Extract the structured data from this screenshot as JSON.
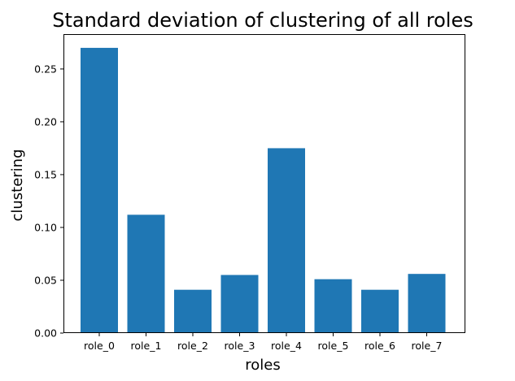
{
  "chart_data": {
    "type": "bar",
    "title": "Standard deviation of clustering of all roles",
    "xlabel": "roles",
    "ylabel": "clustering",
    "categories": [
      "role_0",
      "role_1",
      "role_2",
      "role_3",
      "role_4",
      "role_5",
      "role_6",
      "role_7"
    ],
    "values": [
      0.27,
      0.112,
      0.041,
      0.055,
      0.175,
      0.051,
      0.041,
      0.056
    ],
    "ylim": [
      0,
      0.283
    ],
    "yticks": [
      0.0,
      0.05,
      0.1,
      0.15,
      0.2,
      0.25
    ],
    "ytick_labels": [
      "0.00",
      "0.05",
      "0.10",
      "0.15",
      "0.20",
      "0.25"
    ],
    "bar_color": "#1f77b4",
    "grid": false,
    "legend": "none"
  }
}
